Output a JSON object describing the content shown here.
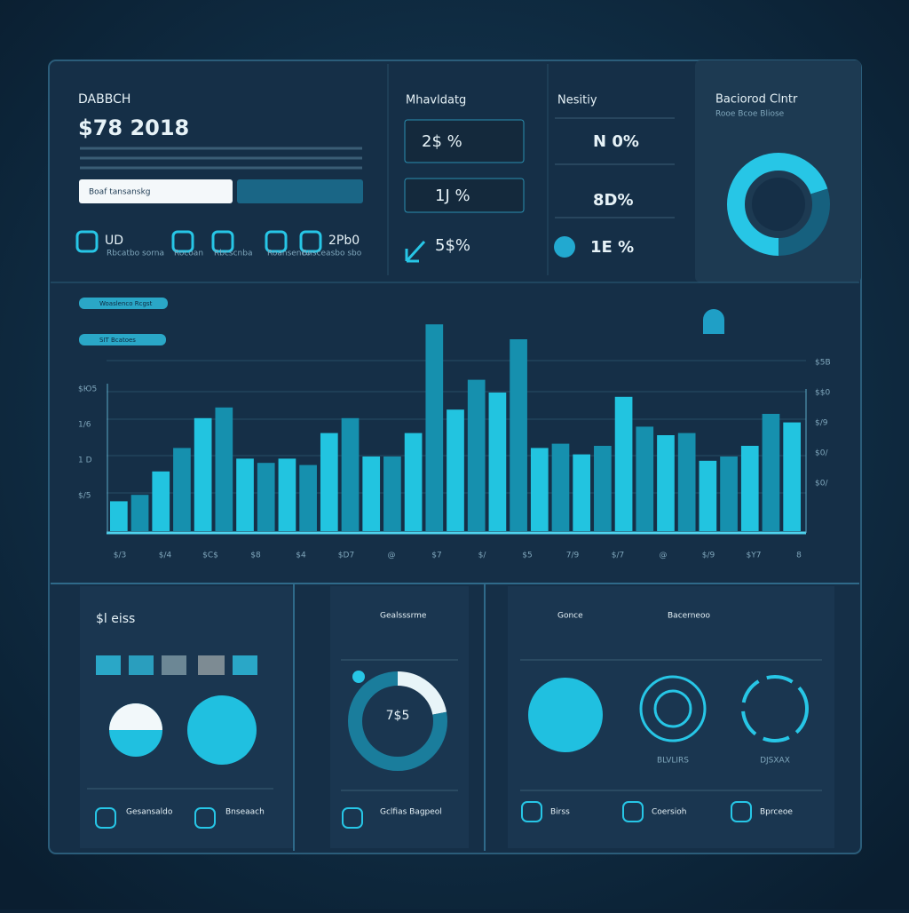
{
  "header": {
    "title": "DABBCH",
    "value": "$78 2018",
    "search_placeholder": "Boaf tansanskg"
  },
  "quick_links": [
    {
      "label": "UD",
      "caption": "Rbcatbo sorna"
    },
    {
      "caption": "Rocoan"
    },
    {
      "caption": "Rbcscnba"
    },
    {
      "caption": "Roansenco"
    },
    {
      "label": "2Pb0",
      "caption": "Bnsceasbo sbo"
    }
  ],
  "metrics_a": {
    "title": "Mhavldatg",
    "items": [
      "2$ %",
      "1J %",
      "5$%"
    ]
  },
  "metrics_b": {
    "title": "Nesitiy",
    "items": [
      "N 0%",
      "8D%",
      "1E %"
    ]
  },
  "status": {
    "title": "Baciorod Clntr",
    "subtitle": "Rooe Bcoe Bliose",
    "gauge": [
      70,
      30
    ],
    "colors": [
      "#27c6e6",
      "#16607e"
    ]
  },
  "chart_data": {
    "type": "bar",
    "filters": [
      "Woaslenco Rcgst",
      "SIT Bcatoes"
    ],
    "values": [
      14,
      17,
      28,
      39,
      53,
      58,
      34,
      32,
      34,
      31,
      46,
      53,
      35,
      35,
      46,
      97,
      57,
      71,
      65,
      90,
      39,
      41,
      36,
      40,
      63,
      49,
      45,
      46,
      33,
      35,
      40,
      55,
      51
    ],
    "ylim": [
      0,
      100
    ],
    "colors": [
      "#22c4e0",
      "#1690ae"
    ],
    "x_labels": [
      "$/3",
      "$/4",
      "$C$",
      "$8",
      "$4",
      "$D7",
      "@",
      "$7",
      "$/",
      "$5",
      "7/9",
      "$/7",
      "@",
      "$/9",
      "$Y7",
      "8"
    ],
    "y_labels_left": [
      "$Ю5",
      "1/6",
      "1 D",
      "$/5"
    ],
    "y_labels_right": [
      "$5B",
      "$$0",
      "$/9",
      "$0/",
      "$0/"
    ]
  },
  "panel_left": {
    "title": "$l eiss",
    "links": [
      "Gesansaldo",
      "Bnseaach"
    ]
  },
  "panel_mid": {
    "title": "Gealsssrme",
    "donut_label": "7$5",
    "donut": [
      22,
      78
    ],
    "colors": [
      "#e8f4f8",
      "#1a7d9c"
    ],
    "link": "Gclfias Bagpeol"
  },
  "panel_right": {
    "titles": [
      "Gonce",
      "Bacerneoo"
    ],
    "captions": [
      "BLVLIRS",
      "DJSXAX"
    ],
    "links": [
      "Birss",
      "Coersioh",
      "Bprceoe"
    ]
  }
}
